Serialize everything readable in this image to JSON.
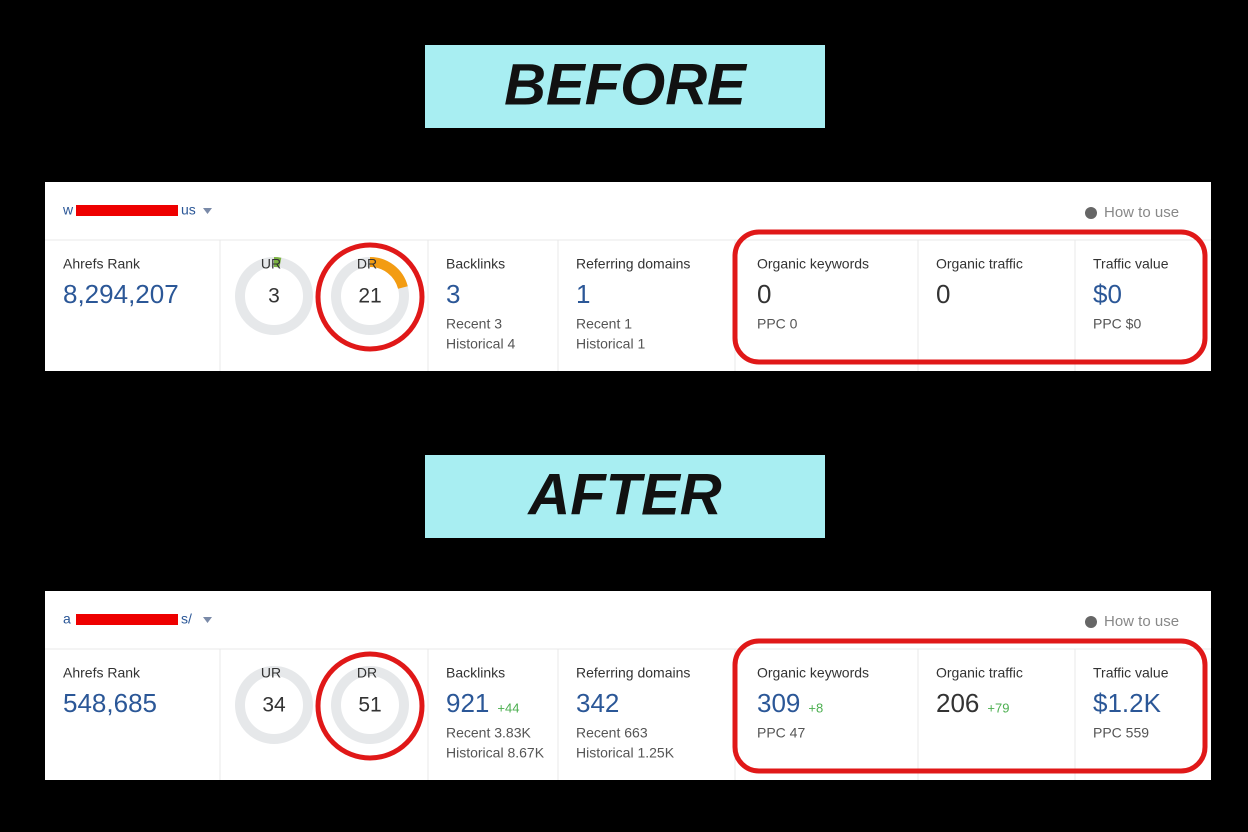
{
  "before": {
    "label": "BEFORE",
    "panel": {
      "domain_start": "w",
      "domain_end": "us",
      "how_to_use": "How to use",
      "ahrefs_rank": {
        "label": "Ahrefs Rank",
        "value": "8,294,207",
        "color": "#2b5797"
      },
      "ur": {
        "label": "UR",
        "value": 3,
        "color": "#7cb342"
      },
      "dr": {
        "label": "DR",
        "value": 21,
        "color": "#f39c12"
      },
      "backlinks": {
        "label": "Backlinks",
        "value": "3",
        "color": "#2b5797",
        "sub": [
          "Recent 3",
          "Historical 4"
        ]
      },
      "referring_domains": {
        "label": "Referring domains",
        "value": "1",
        "color": "#2b5797",
        "sub": [
          "Recent 1",
          "Historical 1"
        ]
      },
      "organic_keywords": {
        "label": "Organic keywords",
        "value": "0",
        "color": "#333333",
        "sub": [
          "PPC 0"
        ]
      },
      "organic_traffic": {
        "label": "Organic traffic",
        "value": "0",
        "color": "#333333"
      },
      "traffic_value": {
        "label": "Traffic value",
        "value": "$0",
        "color": "#2b5797",
        "sub": [
          "PPC $0"
        ]
      }
    }
  },
  "after": {
    "label": "AFTER",
    "panel": {
      "domain_start": "a",
      "domain_end": "s/",
      "how_to_use": "How to use",
      "ahrefs_rank": {
        "label": "Ahrefs Rank",
        "value": "548,685",
        "color": "#2b5797"
      },
      "ur": {
        "label": "UR",
        "value": 34
      },
      "dr": {
        "label": "DR",
        "value": 51
      },
      "backlinks": {
        "label": "Backlinks",
        "value": "921",
        "change": "+44",
        "color": "#2b5797",
        "sub": [
          "Recent 3.83K",
          "Historical 8.67K"
        ]
      },
      "referring_domains": {
        "label": "Referring domains",
        "value": "342",
        "color": "#2b5797",
        "sub": [
          "Recent 663",
          "Historical 1.25K"
        ]
      },
      "organic_keywords": {
        "label": "Organic keywords",
        "value": "309",
        "change": "+8",
        "color": "#2b5797",
        "sub": [
          "PPC 47"
        ]
      },
      "organic_traffic": {
        "label": "Organic traffic",
        "value": "206",
        "change": "+79",
        "color": "#333333"
      },
      "traffic_value": {
        "label": "Traffic value",
        "value": "$1.2K",
        "color": "#2b5797",
        "sub": [
          "PPC 559"
        ]
      }
    }
  }
}
